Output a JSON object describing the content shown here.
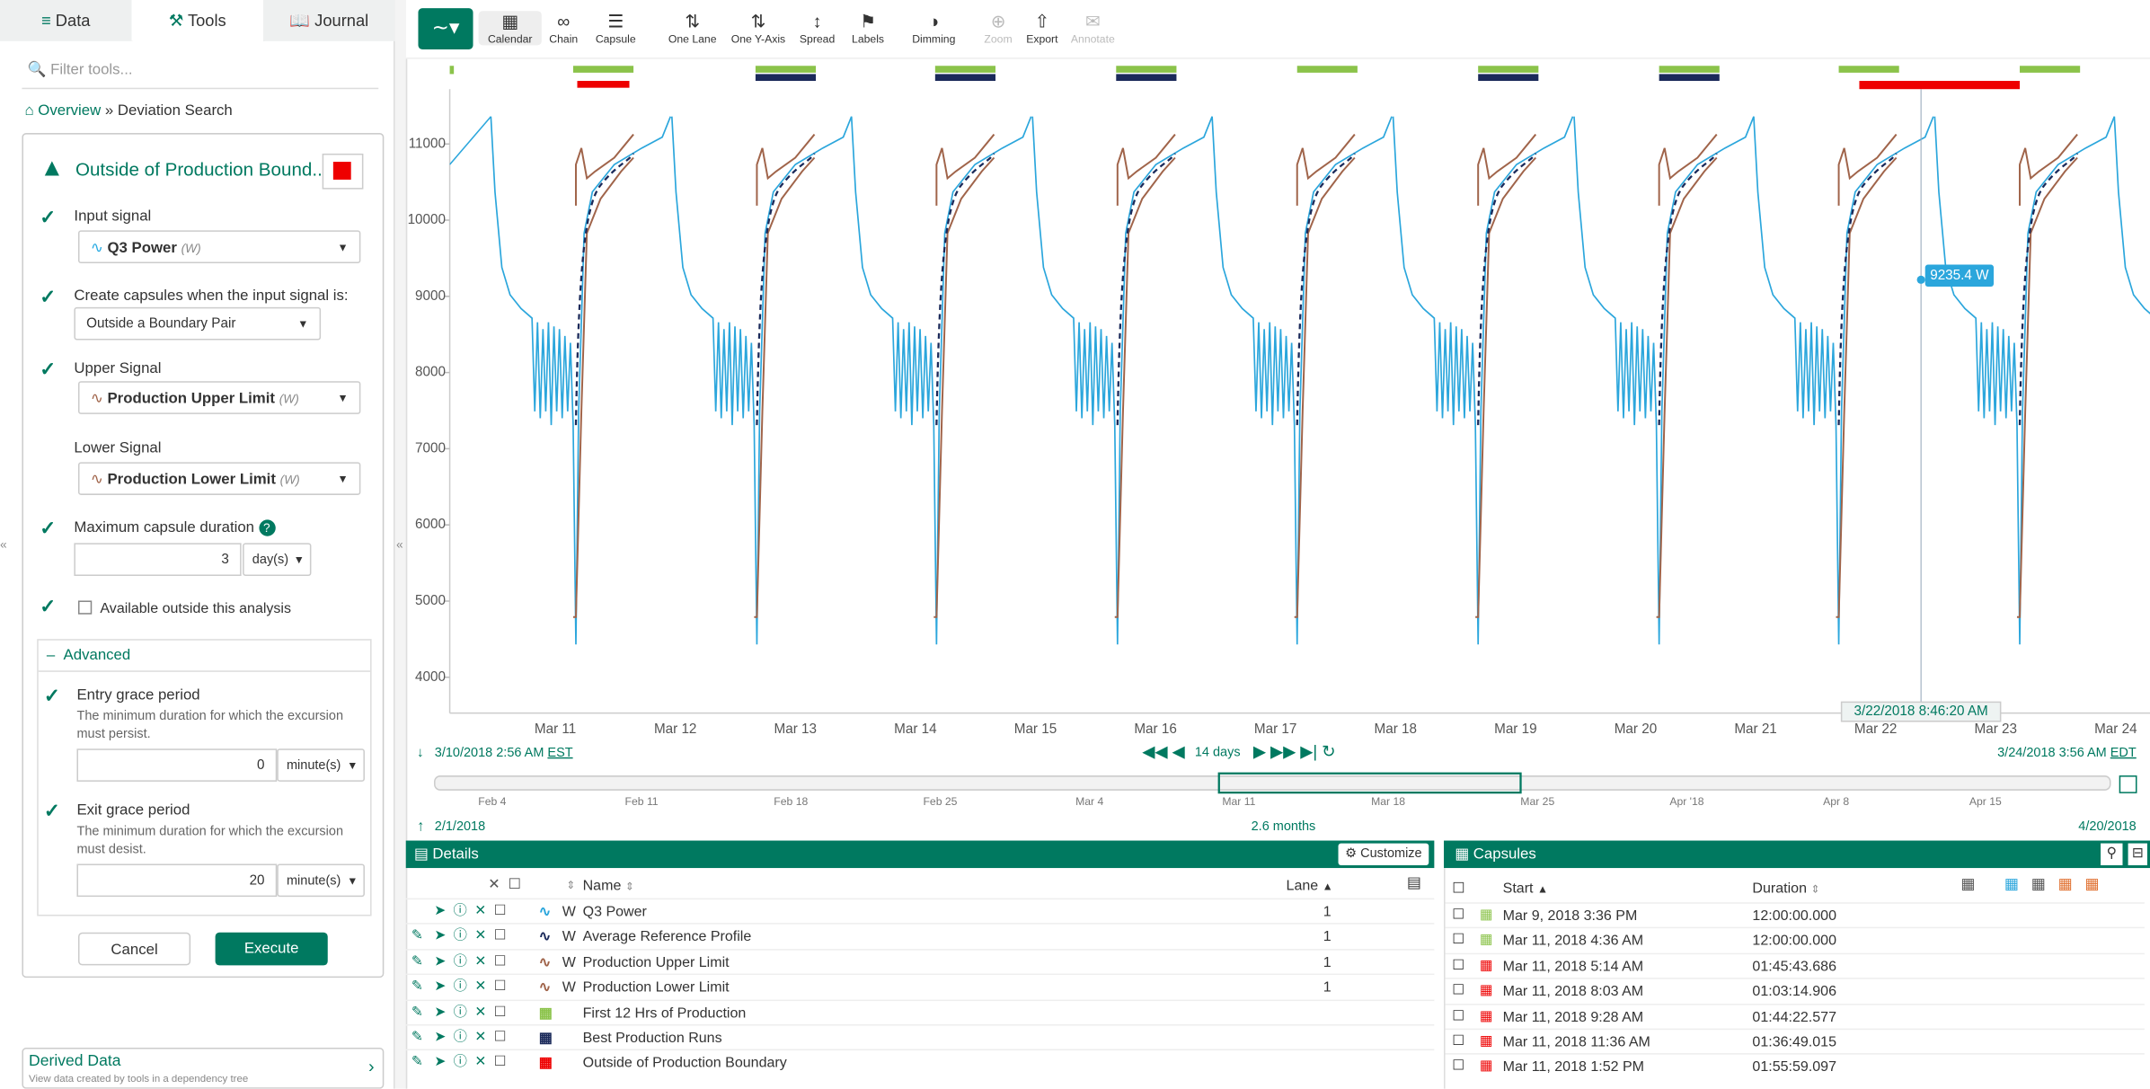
{
  "tabs": [
    "Data",
    "Tools",
    "Journal"
  ],
  "filter_placeholder": "Filter tools...",
  "breadcrumb": {
    "root": "Overview",
    "current": "» Deviation Search"
  },
  "tool": {
    "title": "Outside of Production Bound...",
    "input_signal_label": "Input signal",
    "input_signal": "Q3 Power",
    "input_signal_unit": "(W)",
    "condition_label": "Create capsules when the input signal is:",
    "condition": "Outside a Boundary Pair",
    "upper_label": "Upper Signal",
    "upper": "Production Upper Limit",
    "upper_unit": "(W)",
    "lower_label": "Lower Signal",
    "lower": "Production Lower Limit",
    "lower_unit": "(W)",
    "max_duration_label": "Maximum capsule duration",
    "max_duration": 3,
    "max_duration_unit": "day(s)",
    "available_outside": "Available outside this analysis",
    "advanced": "Advanced",
    "entry_label": "Entry grace period",
    "entry_desc": "The minimum duration for which the excursion must persist.",
    "entry_value": 0,
    "entry_unit": "minute(s)",
    "exit_label": "Exit grace period",
    "exit_desc": "The minimum duration for which the excursion must desist.",
    "exit_value": 20,
    "exit_unit": "minute(s)",
    "cancel": "Cancel",
    "execute": "Execute"
  },
  "derived": {
    "title": "Derived Data",
    "subtitle": "View data created by tools in a dependency tree"
  },
  "toolbar": [
    "Calendar",
    "Chain",
    "Capsule",
    "One Lane",
    "One Y-Axis",
    "Spread",
    "Labels",
    "Dimming",
    "Zoom",
    "Export",
    "Annotate"
  ],
  "trend": {
    "ylim": [
      3530,
      11720
    ],
    "yticks": [
      4000,
      5000,
      6000,
      7000,
      8000,
      9000,
      10000,
      11000
    ],
    "xticks": [
      "Mar 11",
      "Mar 12",
      "Mar 13",
      "Mar 14",
      "Mar 15",
      "Mar 16",
      "Mar 17",
      "Mar 18",
      "Mar 19",
      "Mar 20",
      "Mar 21",
      "Mar 22",
      "Mar 23",
      "Mar 24"
    ],
    "cursor_value": "9235.4 W",
    "cursor_time": "3/22/2018 8:46:20 AM",
    "start": "3/10/2018 2:56 AM",
    "start_tz": "EST",
    "end": "3/24/2018 3:56 AM",
    "end_tz": "EDT",
    "span": "14 days"
  },
  "navigator": {
    "ticks": [
      "Feb 4",
      "Feb 11",
      "Feb 18",
      "Feb 25",
      "Mar 4",
      "Mar 11",
      "Mar 18",
      "Mar 25",
      "Apr '18",
      "Apr 8",
      "Apr 15"
    ],
    "start": "2/1/2018",
    "span": "2.6 months",
    "end": "4/20/2018"
  },
  "details": {
    "title": "Details",
    "customize": "Customize",
    "columns": [
      "Name",
      "Lane"
    ],
    "rows": [
      {
        "unit": "W",
        "name": "Q3 Power",
        "lane": 1
      },
      {
        "unit": "W",
        "name": "Average Reference Profile",
        "lane": 1
      },
      {
        "unit": "W",
        "name": "Production Upper Limit",
        "lane": 1
      },
      {
        "unit": "W",
        "name": "Production Lower Limit",
        "lane": 1
      },
      {
        "name": "First 12 Hrs of Production"
      },
      {
        "name": "Best Production Runs"
      },
      {
        "name": "Outside of Production Boundary"
      }
    ]
  },
  "capsules": {
    "title": "Capsules",
    "columns": [
      "Start",
      "Duration"
    ],
    "rows": [
      [
        "Mar 9, 2018 3:36 PM",
        "12:00:00.000"
      ],
      [
        "Mar 11, 2018 4:36 AM",
        "12:00:00.000"
      ],
      [
        "Mar 11, 2018 5:14 AM",
        "01:45:43.686"
      ],
      [
        "Mar 11, 2018 8:03 AM",
        "01:03:14.906"
      ],
      [
        "Mar 11, 2018 9:28 AM",
        "01:44:22.577"
      ],
      [
        "Mar 11, 2018 11:36 AM",
        "01:36:49.015"
      ],
      [
        "Mar 11, 2018 1:52 PM",
        "01:55:59.097"
      ]
    ]
  }
}
